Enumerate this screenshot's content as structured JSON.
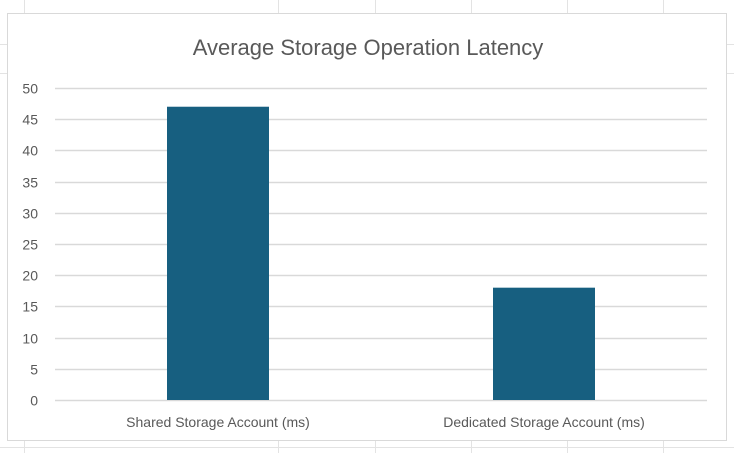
{
  "chart_data": {
    "type": "bar",
    "title": "Average Storage Operation Latency",
    "categories": [
      "Shared Storage Account (ms)",
      "Dedicated Storage Account (ms)"
    ],
    "values": [
      47,
      18
    ],
    "xlabel": "",
    "ylabel": "",
    "ylim": [
      0,
      50
    ],
    "yticks": [
      0,
      5,
      10,
      15,
      20,
      25,
      30,
      35,
      40,
      45,
      50
    ],
    "grid": true,
    "legend": "none",
    "bar_color": "#175F80"
  }
}
